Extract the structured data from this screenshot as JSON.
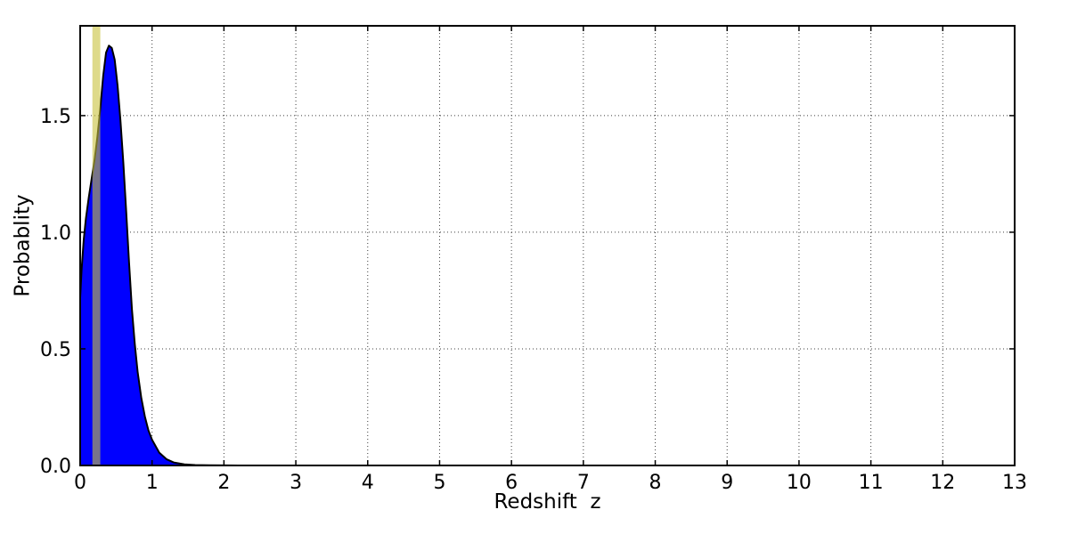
{
  "chart_data": {
    "type": "area",
    "title": "",
    "xlabel": "Redshift  z",
    "ylabel": "Probablity",
    "xlim": [
      0,
      13
    ],
    "ylim": [
      0,
      1.885
    ],
    "x_ticks": [
      0,
      1,
      2,
      3,
      4,
      5,
      6,
      7,
      8,
      9,
      10,
      11,
      12,
      13
    ],
    "x_tick_labels": [
      "0",
      "1",
      "2",
      "3",
      "4",
      "5",
      "6",
      "7",
      "8",
      "9",
      "10",
      "11",
      "12",
      "13"
    ],
    "y_ticks": [
      0.0,
      0.5,
      1.0,
      1.5
    ],
    "y_tick_labels": [
      "0.0",
      "0.5",
      "1.0",
      "1.5"
    ],
    "grid": true,
    "grid_linestyle": "dotted",
    "grid_color": "#3c3c3c",
    "axis_color": "#000000",
    "background_color": "#ffffff",
    "legend": "none",
    "series": [
      {
        "name": "redshift-probability-density",
        "kind": "filled-line",
        "line_color": "#000000",
        "fill_color": "#0000ff",
        "line_width": 2,
        "x": [
          0.0,
          0.02,
          0.05,
          0.08,
          0.12,
          0.16,
          0.2,
          0.24,
          0.28,
          0.32,
          0.36,
          0.4,
          0.44,
          0.48,
          0.52,
          0.56,
          0.6,
          0.64,
          0.68,
          0.72,
          0.76,
          0.8,
          0.85,
          0.9,
          0.95,
          1.0,
          1.1,
          1.2,
          1.3,
          1.45,
          1.6,
          1.8,
          2.2,
          3.0,
          13.0
        ],
        "y": [
          0.72,
          0.84,
          0.97,
          1.06,
          1.15,
          1.23,
          1.31,
          1.41,
          1.53,
          1.67,
          1.77,
          1.8,
          1.79,
          1.74,
          1.63,
          1.48,
          1.3,
          1.09,
          0.87,
          0.67,
          0.52,
          0.4,
          0.29,
          0.21,
          0.15,
          0.11,
          0.055,
          0.027,
          0.013,
          0.005,
          0.002,
          0.001,
          0.0,
          0.0,
          0.0
        ]
      }
    ],
    "vspan": {
      "name": "redshift-highlight-band",
      "x_min": 0.17,
      "x_max": 0.28,
      "color": "#c8c23c",
      "opacity": 0.6
    }
  }
}
